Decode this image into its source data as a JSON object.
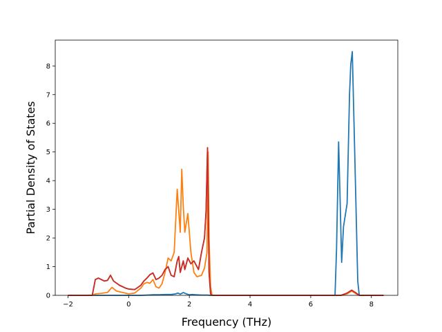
{
  "chart_data": {
    "type": "line",
    "title": "",
    "xlabel": "Frequency (THz)",
    "ylabel": "Partial Density of States",
    "xlim": [
      -2.42,
      8.87
    ],
    "ylim": [
      0,
      8.9
    ],
    "xticks": [
      -2,
      0,
      2,
      4,
      6,
      8
    ],
    "yticks": [
      0,
      1,
      2,
      3,
      4,
      5,
      6,
      7,
      8
    ],
    "grid": false,
    "legend": "none",
    "series": [
      {
        "color": "#1f77b4",
        "points": [
          [
            -2.0,
            0
          ],
          [
            0.4,
            0
          ],
          [
            0.6,
            0.01
          ],
          [
            0.8,
            0.02
          ],
          [
            1.0,
            0.02
          ],
          [
            1.2,
            0.03
          ],
          [
            1.4,
            0.03
          ],
          [
            1.55,
            0.05
          ],
          [
            1.62,
            0.08
          ],
          [
            1.7,
            0.04
          ],
          [
            1.8,
            0.1
          ],
          [
            1.9,
            0.05
          ],
          [
            2.0,
            0.02
          ],
          [
            2.1,
            0.03
          ],
          [
            2.2,
            0.02
          ],
          [
            2.4,
            0.01
          ],
          [
            2.6,
            0.01
          ],
          [
            2.7,
            0
          ],
          [
            6.8,
            0
          ],
          [
            6.85,
            1.6
          ],
          [
            6.92,
            5.35
          ],
          [
            6.97,
            3.3
          ],
          [
            7.02,
            1.15
          ],
          [
            7.08,
            2.4
          ],
          [
            7.2,
            3.2
          ],
          [
            7.28,
            7.0
          ],
          [
            7.32,
            8.05
          ],
          [
            7.37,
            8.5
          ],
          [
            7.45,
            5.0
          ],
          [
            7.55,
            0.5
          ],
          [
            7.6,
            0
          ],
          [
            8.4,
            0
          ]
        ]
      },
      {
        "color": "#ff7f0e",
        "points": [
          [
            -2.0,
            0
          ],
          [
            -1.2,
            0
          ],
          [
            -1.1,
            0.05
          ],
          [
            -0.9,
            0.07
          ],
          [
            -0.7,
            0.1
          ],
          [
            -0.55,
            0.28
          ],
          [
            -0.4,
            0.15
          ],
          [
            -0.2,
            0.1
          ],
          [
            0.0,
            0.05
          ],
          [
            0.2,
            0.08
          ],
          [
            0.4,
            0.25
          ],
          [
            0.5,
            0.4
          ],
          [
            0.6,
            0.45
          ],
          [
            0.7,
            0.42
          ],
          [
            0.8,
            0.55
          ],
          [
            0.9,
            0.3
          ],
          [
            1.0,
            0.25
          ],
          [
            1.1,
            0.4
          ],
          [
            1.2,
            0.8
          ],
          [
            1.3,
            1.3
          ],
          [
            1.4,
            1.2
          ],
          [
            1.5,
            1.5
          ],
          [
            1.6,
            3.7
          ],
          [
            1.7,
            2.2
          ],
          [
            1.75,
            4.4
          ],
          [
            1.8,
            3.1
          ],
          [
            1.85,
            2.2
          ],
          [
            1.95,
            2.85
          ],
          [
            2.05,
            1.5
          ],
          [
            2.15,
            0.8
          ],
          [
            2.25,
            0.65
          ],
          [
            2.4,
            0.7
          ],
          [
            2.5,
            0.95
          ],
          [
            2.58,
            1.5
          ],
          [
            2.62,
            5.0
          ],
          [
            2.65,
            2.0
          ],
          [
            2.7,
            0.3
          ],
          [
            2.75,
            0
          ],
          [
            7.0,
            0
          ],
          [
            7.2,
            0.05
          ],
          [
            7.35,
            0.15
          ],
          [
            7.5,
            0.05
          ],
          [
            7.6,
            0
          ],
          [
            8.4,
            0
          ]
        ]
      },
      {
        "color": "#2ca02c",
        "points": [
          [
            -2.0,
            0
          ],
          [
            -1.2,
            0
          ],
          [
            -1.1,
            0.55
          ],
          [
            -1.0,
            0.6
          ],
          [
            -0.9,
            0.55
          ],
          [
            -0.8,
            0.5
          ],
          [
            -0.7,
            0.52
          ],
          [
            -0.6,
            0.7
          ],
          [
            -0.5,
            0.5
          ],
          [
            -0.3,
            0.35
          ],
          [
            -0.1,
            0.25
          ],
          [
            0.0,
            0.22
          ],
          [
            0.2,
            0.2
          ],
          [
            0.4,
            0.35
          ],
          [
            0.5,
            0.5
          ],
          [
            0.6,
            0.6
          ],
          [
            0.7,
            0.72
          ],
          [
            0.8,
            0.78
          ],
          [
            0.9,
            0.55
          ],
          [
            1.0,
            0.6
          ],
          [
            1.1,
            0.7
          ],
          [
            1.2,
            0.9
          ],
          [
            1.3,
            1.0
          ],
          [
            1.4,
            0.7
          ],
          [
            1.5,
            0.65
          ],
          [
            1.6,
            1.2
          ],
          [
            1.65,
            1.35
          ],
          [
            1.7,
            0.8
          ],
          [
            1.8,
            1.2
          ],
          [
            1.85,
            0.9
          ],
          [
            1.95,
            1.3
          ],
          [
            2.05,
            1.1
          ],
          [
            2.15,
            1.2
          ],
          [
            2.3,
            0.9
          ],
          [
            2.4,
            1.5
          ],
          [
            2.5,
            2.0
          ],
          [
            2.55,
            2.9
          ],
          [
            2.6,
            5.15
          ],
          [
            2.65,
            0.8
          ],
          [
            2.7,
            0.05
          ],
          [
            2.75,
            0
          ],
          [
            7.0,
            0
          ],
          [
            7.2,
            0.08
          ],
          [
            7.35,
            0.18
          ],
          [
            7.5,
            0.08
          ],
          [
            7.6,
            0
          ],
          [
            8.4,
            0
          ]
        ]
      },
      {
        "color": "#d62728",
        "points": [
          [
            -2.0,
            0
          ],
          [
            -1.2,
            0
          ],
          [
            -1.1,
            0.55
          ],
          [
            -1.0,
            0.6
          ],
          [
            -0.9,
            0.55
          ],
          [
            -0.8,
            0.5
          ],
          [
            -0.7,
            0.52
          ],
          [
            -0.6,
            0.7
          ],
          [
            -0.5,
            0.5
          ],
          [
            -0.3,
            0.35
          ],
          [
            -0.1,
            0.25
          ],
          [
            0.0,
            0.22
          ],
          [
            0.2,
            0.2
          ],
          [
            0.4,
            0.35
          ],
          [
            0.5,
            0.5
          ],
          [
            0.6,
            0.6
          ],
          [
            0.7,
            0.72
          ],
          [
            0.8,
            0.78
          ],
          [
            0.9,
            0.55
          ],
          [
            1.0,
            0.6
          ],
          [
            1.1,
            0.7
          ],
          [
            1.2,
            0.9
          ],
          [
            1.3,
            1.0
          ],
          [
            1.4,
            0.7
          ],
          [
            1.5,
            0.65
          ],
          [
            1.6,
            1.2
          ],
          [
            1.65,
            1.35
          ],
          [
            1.7,
            0.8
          ],
          [
            1.8,
            1.2
          ],
          [
            1.85,
            0.9
          ],
          [
            1.95,
            1.3
          ],
          [
            2.05,
            1.1
          ],
          [
            2.15,
            1.2
          ],
          [
            2.3,
            0.9
          ],
          [
            2.4,
            1.5
          ],
          [
            2.5,
            2.0
          ],
          [
            2.55,
            2.9
          ],
          [
            2.6,
            5.15
          ],
          [
            2.65,
            0.8
          ],
          [
            2.7,
            0.05
          ],
          [
            2.75,
            0
          ],
          [
            7.0,
            0
          ],
          [
            7.2,
            0.08
          ],
          [
            7.35,
            0.18
          ],
          [
            7.5,
            0.08
          ],
          [
            7.6,
            0
          ],
          [
            8.4,
            0
          ]
        ]
      }
    ]
  }
}
